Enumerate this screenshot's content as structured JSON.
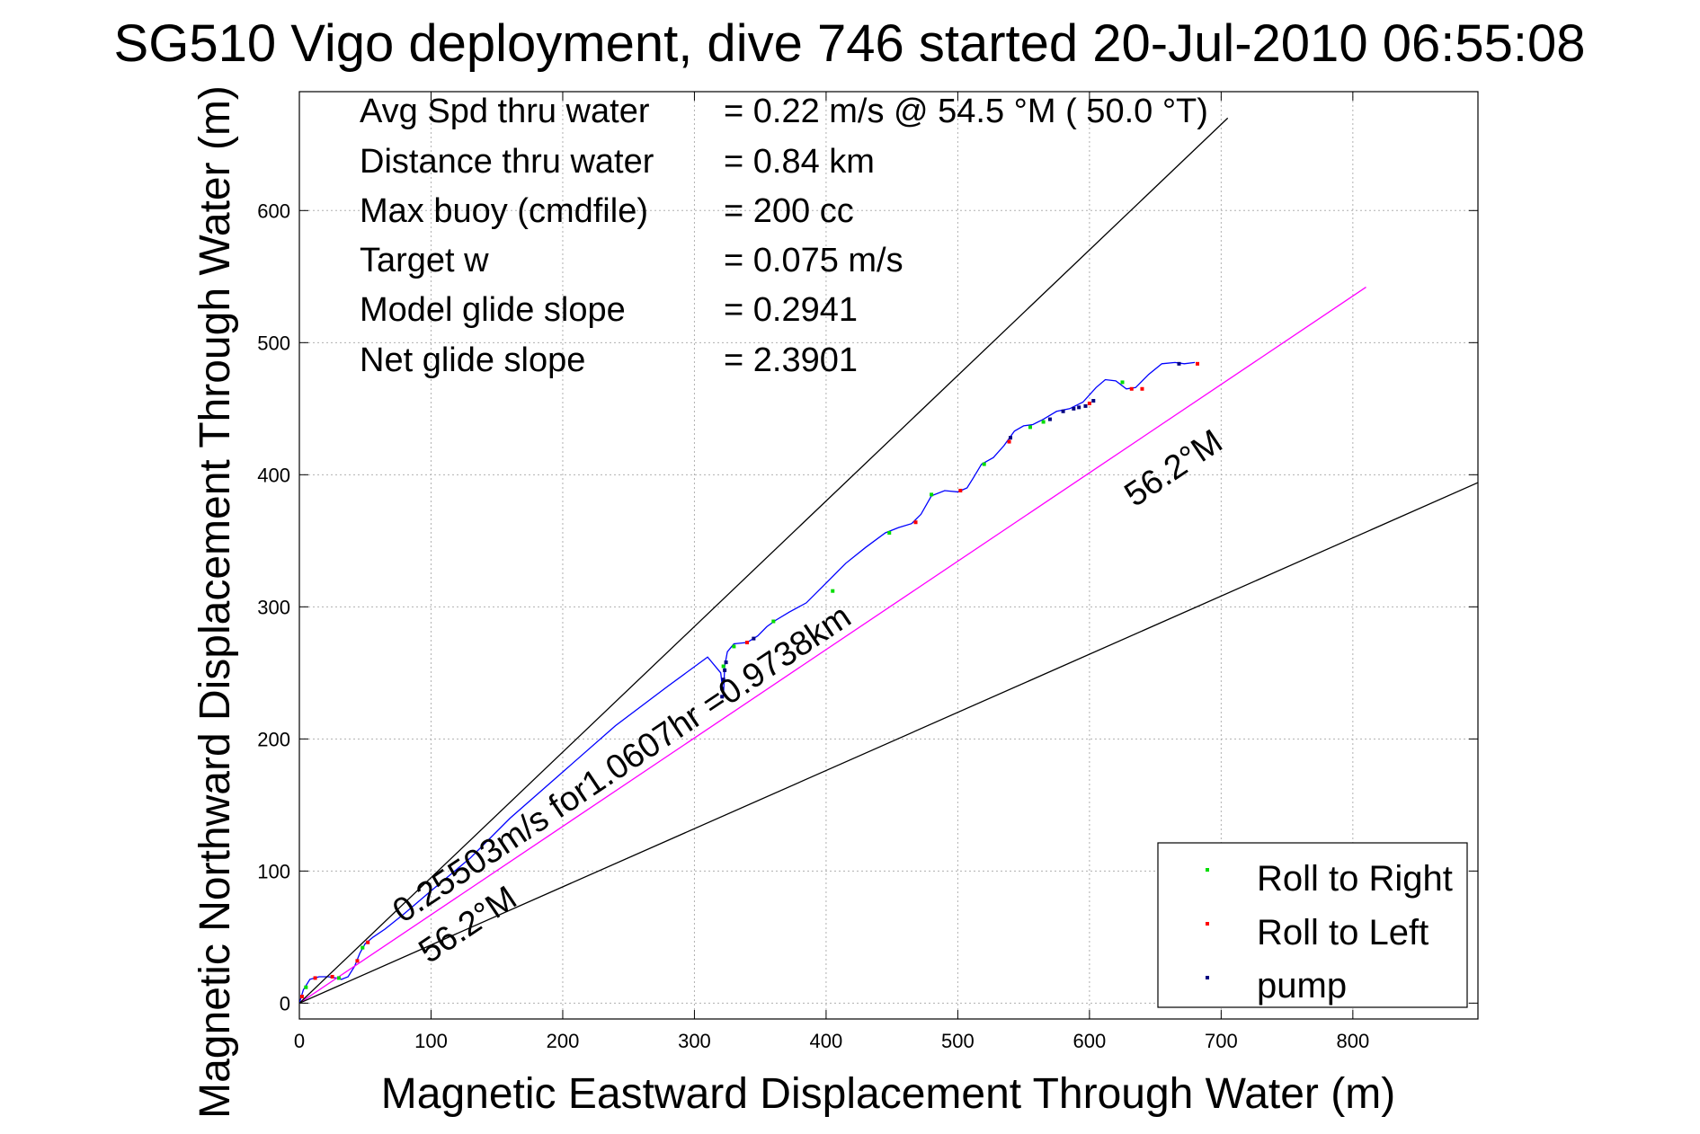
{
  "chart_data": {
    "type": "line",
    "title": "SG510 Vigo deployment, dive 746 started 20-Jul-2010 06:55:08",
    "xlabel": "Magnetic Eastward Displacement Through Water (m)",
    "ylabel": "Magnetic Northward Displacement Through Water (m)",
    "xlim": [
      0,
      895
    ],
    "ylim": [
      -12,
      690
    ],
    "xticks": [
      "0",
      "100",
      "200",
      "300",
      "400",
      "500",
      "600",
      "700",
      "800"
    ],
    "yticks": [
      "0",
      "100",
      "200",
      "300",
      "400",
      "500",
      "600"
    ],
    "grid": true,
    "legend_position": "bottom-right",
    "info_rows": [
      {
        "label": "Avg Spd thru water",
        "value": "=  0.22 m/s @  54.5 °M ( 50.0 °T)"
      },
      {
        "label": "Distance thru water",
        "value": "=  0.84 km"
      },
      {
        "label": "Max buoy (cmdfile)",
        "value": "= 200 cc"
      },
      {
        "label": "Target w",
        "value": "= 0.075 m/s"
      },
      {
        "label": "Model glide slope",
        "value": "= 0.2941"
      },
      {
        "label": "Net glide slope",
        "value": "= 2.3901"
      }
    ],
    "annotations": {
      "track_label": "0.25503m/s for1.0607hr =0.9738km",
      "heading_label_upper": "56.2°M",
      "heading_label_lower": "56.2°M"
    },
    "legend": [
      {
        "label": "Roll to Right",
        "color": "#00dd00"
      },
      {
        "label": "Roll to Left",
        "color": "#ff0000"
      },
      {
        "label": "pump",
        "color": "#000080"
      }
    ],
    "series": [
      {
        "color": "#0000ff",
        "x": [
          0,
          3,
          8,
          15,
          22,
          28,
          32,
          37,
          42,
          46,
          50,
          56,
          65,
          80,
          100,
          130,
          160,
          200,
          240,
          280,
          310,
          320,
          322,
          323,
          325,
          330,
          340,
          348,
          355,
          362,
          372,
          385,
          400,
          415,
          430,
          445,
          455,
          465,
          472,
          480,
          490,
          500,
          507,
          512,
          518,
          527,
          535,
          543,
          550,
          557,
          565,
          575,
          585,
          595,
          605,
          612,
          620,
          628,
          635,
          645,
          655,
          665,
          672,
          680
        ],
        "y": [
          0,
          10,
          18,
          20,
          20,
          19,
          18,
          20,
          28,
          38,
          45,
          50,
          56,
          68,
          85,
          110,
          140,
          175,
          210,
          240,
          262,
          250,
          232,
          255,
          266,
          272,
          273,
          278,
          285,
          290,
          296,
          303,
          318,
          333,
          345,
          356,
          360,
          363,
          370,
          384,
          388,
          387,
          390,
          398,
          408,
          413,
          422,
          433,
          437,
          438,
          442,
          448,
          450,
          455,
          466,
          472,
          471,
          465,
          466,
          476,
          484,
          485,
          484,
          485
        ]
      },
      {
        "color": "#ff00ff",
        "x": [
          0,
          810
        ],
        "y": [
          0,
          542
        ]
      },
      {
        "color": "#000000",
        "x": [
          0,
          705
        ],
        "y": [
          0,
          670
        ]
      },
      {
        "color": "#000000",
        "x": [
          0,
          895
        ],
        "y": [
          0,
          394
        ]
      }
    ],
    "markers": {
      "roll_right": {
        "color": "#00dd00",
        "x": [
          5,
          30,
          48,
          322,
          330,
          360,
          405,
          448,
          480,
          520,
          555,
          565,
          625
        ],
        "y": [
          12,
          19,
          42,
          255,
          270,
          289,
          312,
          356,
          385,
          408,
          436,
          440,
          470
        ]
      },
      "roll_left": {
        "color": "#ff0000",
        "x": [
          2,
          12,
          25,
          44,
          52,
          340,
          468,
          502,
          539,
          600,
          632,
          640,
          682
        ],
        "y": [
          5,
          19,
          20,
          32,
          46,
          273,
          364,
          388,
          425,
          454,
          465,
          465,
          484
        ]
      },
      "pump": {
        "color": "#000080",
        "x": [
          321,
          321,
          322,
          323,
          324,
          345,
          540,
          570,
          580,
          588,
          592,
          597,
          603,
          668
        ],
        "y": [
          232,
          238,
          245,
          252,
          258,
          276,
          428,
          442,
          448,
          450,
          451,
          452,
          456,
          484
        ]
      }
    }
  }
}
